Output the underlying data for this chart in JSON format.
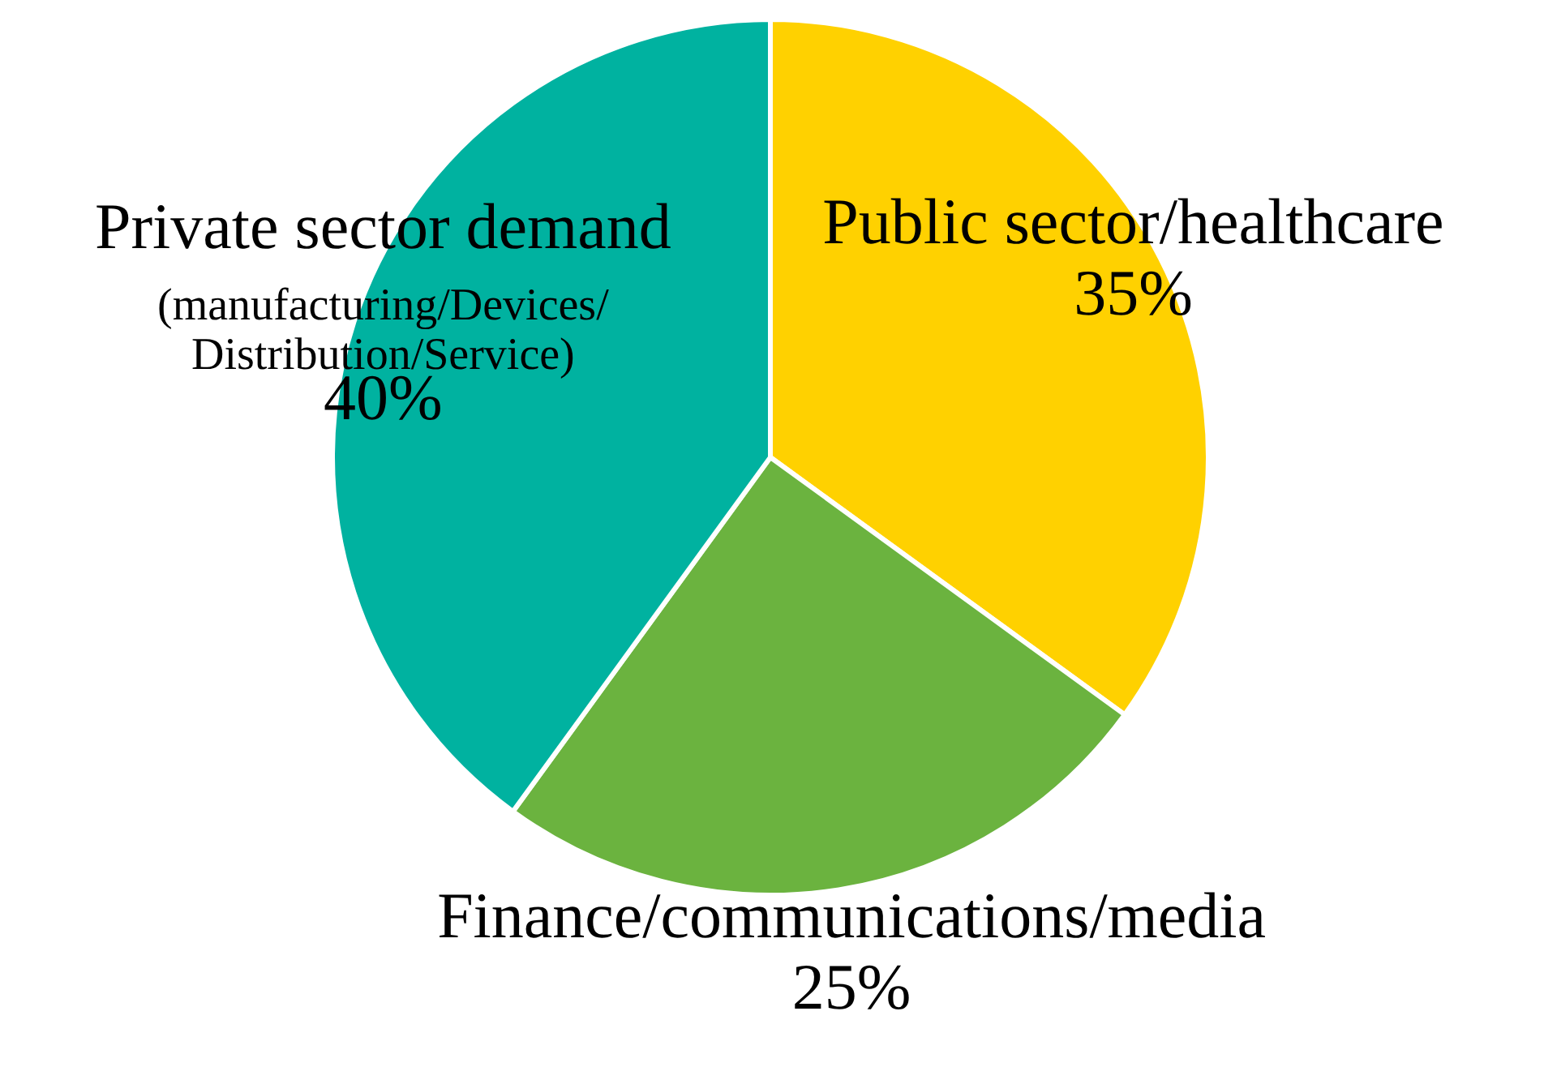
{
  "chart_data": {
    "type": "pie",
    "categories": [
      "Public sector/healthcare",
      "Finance/communications/media",
      "Private sector demand (manufacturing/Devices/Distribution/Service)"
    ],
    "values": [
      35,
      25,
      40
    ],
    "colors": [
      "#ffd100",
      "#6bb33f",
      "#00b2a0"
    ],
    "value_labels": [
      "35%",
      "25%",
      "40%"
    ],
    "legend": false
  }
}
